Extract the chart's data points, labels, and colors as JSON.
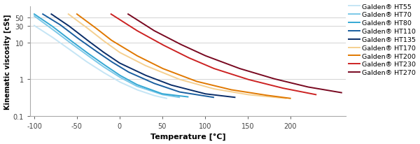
{
  "title": "",
  "xlabel": "Temperature [°C]",
  "ylabel": "Kinematic viscosity [cSt]",
  "xlim": [
    -105,
    265
  ],
  "ylim_log": [
    0.1,
    100
  ],
  "xticks": [
    -100,
    -50,
    0,
    50,
    100,
    150,
    200
  ],
  "yticks": [
    0.1,
    1,
    10,
    30,
    50
  ],
  "grid_color": "#cccccc",
  "background_color": "#ffffff",
  "series": [
    {
      "name": "Galden® HT55",
      "color": "#c5e5f5",
      "temps": [
        -100,
        -80,
        -60,
        -40,
        -20,
        0,
        20,
        40,
        55
      ],
      "viscs": [
        30,
        15,
        7,
        3.2,
        1.6,
        0.85,
        0.52,
        0.36,
        0.3
      ]
    },
    {
      "name": "Galden® HT70",
      "color": "#7bc8e8",
      "temps": [
        -100,
        -80,
        -60,
        -40,
        -20,
        0,
        20,
        50,
        70
      ],
      "viscs": [
        55,
        25,
        11,
        5,
        2.3,
        1.15,
        0.65,
        0.38,
        0.32
      ]
    },
    {
      "name": "Galden® HT80",
      "color": "#35a8d4",
      "temps": [
        -100,
        -80,
        -60,
        -40,
        -20,
        0,
        20,
        50,
        80
      ],
      "viscs": [
        62,
        30,
        13,
        5.8,
        2.7,
        1.3,
        0.72,
        0.4,
        0.33
      ]
    },
    {
      "name": "Galden® HT110",
      "color": "#1a5fa0",
      "temps": [
        -90,
        -70,
        -50,
        -30,
        -10,
        10,
        40,
        70,
        110
      ],
      "viscs": [
        62,
        32,
        14,
        6.5,
        3.1,
        1.6,
        0.78,
        0.45,
        0.32
      ]
    },
    {
      "name": "Galden® HT135",
      "color": "#0a2d68",
      "temps": [
        -80,
        -60,
        -40,
        -20,
        0,
        30,
        60,
        100,
        135
      ],
      "viscs": [
        62,
        30,
        13,
        5.8,
        2.8,
        1.3,
        0.7,
        0.4,
        0.32
      ]
    },
    {
      "name": "Galden® HT170",
      "color": "#f5d090",
      "temps": [
        -60,
        -40,
        -20,
        0,
        30,
        70,
        110,
        150,
        195
      ],
      "viscs": [
        62,
        28,
        12,
        5.5,
        2.4,
        1.0,
        0.55,
        0.38,
        0.3
      ]
    },
    {
      "name": "Galden® HT200",
      "color": "#e07800",
      "temps": [
        -50,
        -30,
        -10,
        20,
        50,
        90,
        130,
        170,
        200
      ],
      "viscs": [
        62,
        28,
        12,
        4.5,
        2.0,
        0.88,
        0.52,
        0.37,
        0.3
      ]
    },
    {
      "name": "Galden® HT230",
      "color": "#cc2222",
      "temps": [
        -10,
        20,
        50,
        80,
        110,
        150,
        190,
        230
      ],
      "viscs": [
        62,
        22,
        9.0,
        4.0,
        2.0,
        1.0,
        0.58,
        0.38
      ]
    },
    {
      "name": "Galden® HT270",
      "color": "#780820",
      "temps": [
        10,
        40,
        70,
        100,
        140,
        180,
        220,
        260
      ],
      "viscs": [
        62,
        22,
        9.5,
        4.5,
        2.0,
        1.05,
        0.62,
        0.43
      ]
    }
  ]
}
